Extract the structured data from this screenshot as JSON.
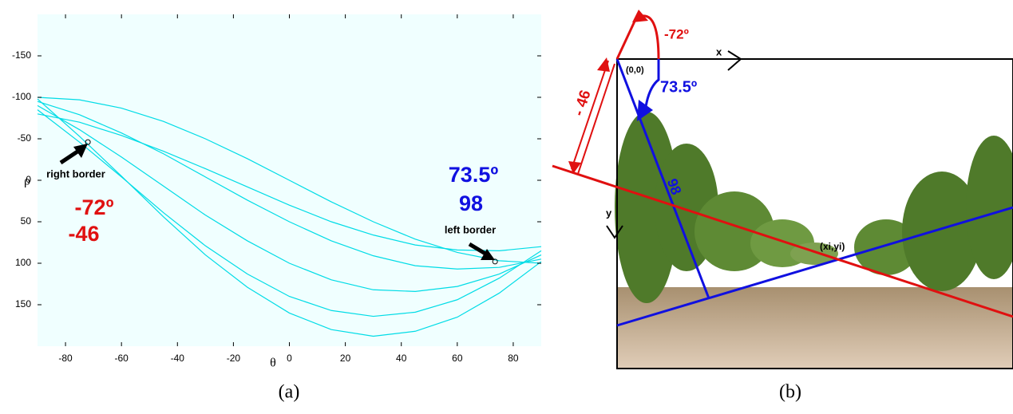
{
  "chart_data": {
    "type": "line",
    "x_label": "θ",
    "y_label": "ρ",
    "x": [
      -90,
      -75,
      -60,
      -45,
      -30,
      -15,
      0,
      15,
      30,
      45,
      60,
      75,
      90
    ],
    "series": [
      {
        "color": "#00dce6",
        "values": [
          -100,
          -97,
          -87,
          -71,
          -50,
          -26,
          0,
          26,
          50,
          71,
          87,
          97,
          100
        ]
      },
      {
        "color": "#00dce6",
        "values": [
          -95,
          -79,
          -57,
          -32,
          -4,
          24,
          50,
          73,
          91,
          103,
          107,
          105,
          95
        ]
      },
      {
        "color": "#00dce6",
        "values": [
          -90,
          -61,
          -28,
          7,
          42,
          73,
          100,
          120,
          132,
          134,
          128,
          113,
          90
        ]
      },
      {
        "color": "#00dce6",
        "values": [
          -85,
          -46,
          -4,
          39,
          79,
          113,
          140,
          157,
          164,
          159,
          144,
          118,
          85
        ]
      },
      {
        "color": "#00dce6",
        "values": [
          -98,
          -53,
          -5,
          44,
          90,
          129,
          160,
          180,
          188,
          182,
          165,
          136,
          98
        ]
      },
      {
        "color": "#00dce6",
        "values": [
          -80,
          -70,
          -54,
          -35,
          -14,
          8,
          30,
          50,
          66,
          78,
          84,
          85,
          80
        ]
      }
    ],
    "xlim": [
      -90,
      90
    ],
    "ylim": [
      -200,
      200
    ],
    "y_inverted": true,
    "xticks": [
      -80,
      -60,
      -40,
      -20,
      0,
      20,
      40,
      60,
      80
    ],
    "yticks": [
      -150,
      -100,
      -50,
      0,
      50,
      100,
      150
    ],
    "background": "#f0ffff",
    "markers": [
      {
        "x": -72,
        "y": -46
      },
      {
        "x": 73.5,
        "y": 98
      }
    ],
    "annotations": [
      "right border",
      "-72º",
      "-46",
      "73.5º",
      "98",
      "left border"
    ]
  },
  "diagram": {
    "x_axis": "x",
    "y_axis": "y",
    "origin": "(0,0)",
    "blue_angle": "73.5º",
    "red_angle": "-72º",
    "red_distance": "- 46",
    "blue_distance": "98",
    "intersection": "(xi,yi)"
  },
  "captions": [
    "(a)",
    "(b)"
  ]
}
